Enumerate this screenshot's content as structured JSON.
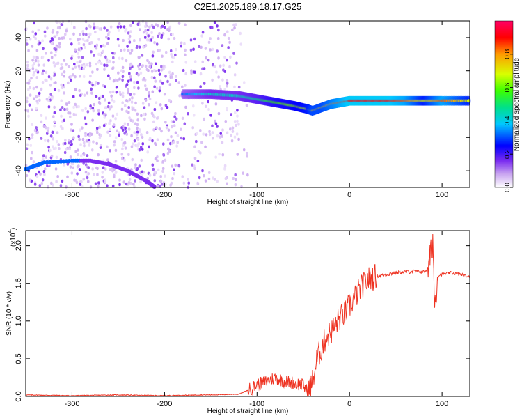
{
  "title": "C2E1.2025.189.18.17.G25",
  "chart_data": [
    {
      "type": "heatmap",
      "title": "C2E1.2025.189.18.17.G25",
      "xlabel": "Height of straight line (km)",
      "ylabel": "Frequency (Hz)",
      "xlim": [
        -350,
        130
      ],
      "ylim": [
        -50,
        50
      ],
      "x_ticks": [
        "-300",
        "-200",
        "-100",
        "0",
        "100"
      ],
      "y_ticks": [
        "-40",
        "-20",
        "0",
        "20",
        "40"
      ],
      "colorbar": {
        "label": "Normalized spectral amplitude",
        "range": [
          0,
          1
        ],
        "ticks": [
          "0.0",
          "0.2",
          "0.4",
          "0.6",
          "0.8"
        ],
        "colors": [
          "#ffffff",
          "#c9a5f0",
          "#7a2cf0",
          "#0000ff",
          "#00c8ff",
          "#00e08a",
          "#3cff00",
          "#d8ff00",
          "#ff9a00",
          "#ff0000",
          "#ff0066"
        ]
      },
      "main_track": {
        "x": [
          -180,
          -150,
          -120,
          -100,
          -80,
          -60,
          -45,
          -40,
          -30,
          -20,
          -10,
          0,
          20,
          40,
          60,
          80,
          100,
          130
        ],
        "y": [
          6,
          6,
          5,
          3,
          1,
          -1,
          -3,
          -4,
          -2,
          0,
          1,
          2,
          2,
          2,
          2,
          2,
          2,
          2
        ],
        "amplitude": [
          0.35,
          0.45,
          0.45,
          0.5,
          0.6,
          0.65,
          0.7,
          0.75,
          0.75,
          0.8,
          0.85,
          0.9,
          0.9,
          0.9,
          0.85,
          0.7,
          0.85,
          0.7
        ]
      },
      "secondary_track": {
        "x": [
          -350,
          -330,
          -300,
          -280,
          -260,
          -240,
          -220,
          -210
        ],
        "y": [
          -39,
          -35,
          -34,
          -34,
          -36,
          -40,
          -46,
          -50
        ]
      }
    },
    {
      "type": "line",
      "xlabel": "Height of straight line (km)",
      "ylabel": "SNR (10 * v/v)",
      "y_multiplier": "(x10^4)",
      "xlim": [
        -350,
        130
      ],
      "ylim": [
        0,
        2.2
      ],
      "x_ticks": [
        "-300",
        "-200",
        "-100",
        "0",
        "100"
      ],
      "y_ticks": [
        "0.0",
        "0.5",
        "1.0",
        "1.5",
        "2.0"
      ],
      "color": "#ee3322",
      "series": [
        {
          "x": [
            -350,
            -300,
            -250,
            -200,
            -160,
            -150,
            -120,
            -110,
            -100,
            -90,
            -80,
            -70,
            -60,
            -50,
            -45,
            -40,
            -35,
            -30,
            -25,
            -20,
            -15,
            -10,
            -5,
            0,
            5,
            10,
            20,
            30,
            40,
            50,
            60,
            70,
            80,
            85,
            88,
            90,
            92,
            95,
            100,
            110,
            120,
            130
          ],
          "y": [
            0.02,
            0.01,
            0.02,
            0.01,
            0.02,
            0.02,
            0.03,
            0.08,
            0.15,
            0.2,
            0.25,
            0.2,
            0.18,
            0.15,
            0.05,
            0.2,
            0.5,
            0.65,
            0.8,
            0.85,
            0.95,
            1.05,
            1.1,
            1.2,
            1.3,
            1.4,
            1.55,
            1.6,
            1.62,
            1.64,
            1.65,
            1.66,
            1.65,
            1.7,
            1.9,
            2.1,
            1.2,
            1.6,
            1.62,
            1.64,
            1.62,
            1.58
          ]
        }
      ]
    }
  ],
  "labels": {
    "colorbar_label": "Normalized spectral amplitude",
    "x_multiplier": "(x10",
    "x_multiplier_exp": "4",
    "x_multiplier_close": ")"
  }
}
